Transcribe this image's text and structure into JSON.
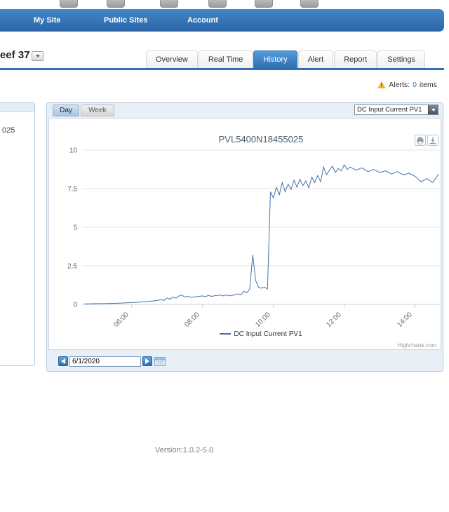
{
  "colors": {
    "nav_blue": "#2e6fb7",
    "tab_active": "#3d7fc1",
    "warning": "#f3b33c",
    "button_blue": "#3a7abf"
  },
  "nav": {
    "items": [
      {
        "label": "My Site"
      },
      {
        "label": "Public Sites"
      },
      {
        "label": "Account"
      }
    ]
  },
  "page": {
    "title_partial": "eef 37",
    "version": "Version:1.0.2-5.0"
  },
  "tabs": {
    "items": [
      {
        "label": "Overview",
        "active": false
      },
      {
        "label": "Real Time",
        "active": false
      },
      {
        "label": "History",
        "active": true
      },
      {
        "label": "Alert",
        "active": false
      },
      {
        "label": "Report",
        "active": false
      },
      {
        "label": "Settings",
        "active": false
      }
    ]
  },
  "alerts": {
    "label": "Alerts:",
    "count": "0",
    "suffix": "items"
  },
  "sidebar": {
    "partial_item": "025"
  },
  "panel": {
    "day_label": "Day",
    "week_label": "Week",
    "series_select_value": "DC Input Current PV1"
  },
  "datenav": {
    "date_value": "6/1/2020"
  },
  "chart_data": {
    "type": "line",
    "title": "PVL5400N18455025",
    "series_name": "DC Input Current PV1",
    "line_color": "#4572a7",
    "ylim": [
      0,
      10
    ],
    "yticks": [
      0,
      2.5,
      5,
      7.5,
      10
    ],
    "xticks": [
      "06:00",
      "08:00",
      "10:00",
      "12:00",
      "14:00"
    ],
    "xlim_hours": [
      4.6,
      14.7
    ],
    "grid": true,
    "legend_position": "bottom",
    "credit": "Highcharts.com",
    "x": [
      "04:40",
      "04:50",
      "05:00",
      "05:10",
      "05:20",
      "05:30",
      "05:40",
      "05:50",
      "06:00",
      "06:10",
      "06:20",
      "06:30",
      "06:40",
      "06:50",
      "06:55",
      "07:00",
      "07:05",
      "07:10",
      "07:15",
      "07:20",
      "07:25",
      "07:30",
      "07:35",
      "07:40",
      "07:50",
      "08:00",
      "08:05",
      "08:10",
      "08:15",
      "08:20",
      "08:30",
      "08:35",
      "08:40",
      "08:45",
      "08:50",
      "09:00",
      "09:05",
      "09:10",
      "09:15",
      "09:20",
      "09:25",
      "09:30",
      "09:35",
      "09:40",
      "09:45",
      "09:50",
      "09:55",
      "10:00",
      "10:05",
      "10:10",
      "10:15",
      "10:20",
      "10:25",
      "10:30",
      "10:35",
      "10:40",
      "10:45",
      "10:50",
      "10:55",
      "11:00",
      "11:05",
      "11:10",
      "11:15",
      "11:20",
      "11:25",
      "11:30",
      "11:35",
      "11:40",
      "11:45",
      "11:50",
      "11:55",
      "12:00",
      "12:05",
      "12:10",
      "12:20",
      "12:30",
      "12:40",
      "12:50",
      "13:00",
      "13:10",
      "13:20",
      "13:30",
      "13:40",
      "13:50",
      "14:00",
      "14:10",
      "14:20",
      "14:30",
      "14:40"
    ],
    "y": [
      0.03,
      0.04,
      0.05,
      0.05,
      0.06,
      0.07,
      0.08,
      0.1,
      0.12,
      0.14,
      0.17,
      0.2,
      0.24,
      0.3,
      0.26,
      0.42,
      0.34,
      0.48,
      0.4,
      0.55,
      0.6,
      0.48,
      0.52,
      0.46,
      0.5,
      0.55,
      0.5,
      0.58,
      0.52,
      0.56,
      0.6,
      0.55,
      0.62,
      0.55,
      0.58,
      0.68,
      0.62,
      0.85,
      0.75,
      1.0,
      3.2,
      1.55,
      1.1,
      1.05,
      1.12,
      1.0,
      7.3,
      6.9,
      7.6,
      7.1,
      7.9,
      7.3,
      7.8,
      7.45,
      8.05,
      7.6,
      8.1,
      7.7,
      8.0,
      7.55,
      8.25,
      7.9,
      8.35,
      7.95,
      8.9,
      8.4,
      8.7,
      8.95,
      8.55,
      8.8,
      8.65,
      9.05,
      8.75,
      8.9,
      8.7,
      8.85,
      8.6,
      8.75,
      8.55,
      8.65,
      8.45,
      8.6,
      8.4,
      8.5,
      8.3,
      7.95,
      8.15,
      7.9,
      8.45
    ]
  }
}
